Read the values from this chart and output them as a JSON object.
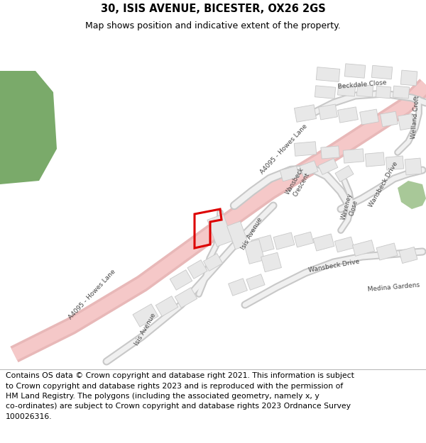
{
  "title": "30, ISIS AVENUE, BICESTER, OX26 2GS",
  "subtitle": "Map shows position and indicative extent of the property.",
  "footer_lines": [
    "Contains OS data © Crown copyright and database right 2021. This information is subject",
    "to Crown copyright and database rights 2023 and is reproduced with the permission of",
    "HM Land Registry. The polygons (including the associated geometry, namely x, y",
    "co-ordinates) are subject to Crown copyright and database rights 2023 Ordnance Survey",
    "100026316."
  ],
  "bg_color": "#ffffff",
  "map_bg_color": "#ffffff",
  "road_fill_color": "#f5c8c8",
  "road_edge_color": "#e8b8b8",
  "building_fill": "#e8e8e8",
  "building_edge": "#c8c8c8",
  "green_color": "#7aaa6a",
  "green2_color": "#a8c898",
  "highlight_color": "#dd0000",
  "label_color": "#444444",
  "title_fontsize": 10.5,
  "subtitle_fontsize": 9,
  "footer_fontsize": 7.8,
  "road_lw_outer": 14,
  "road_lw_inner": 10
}
